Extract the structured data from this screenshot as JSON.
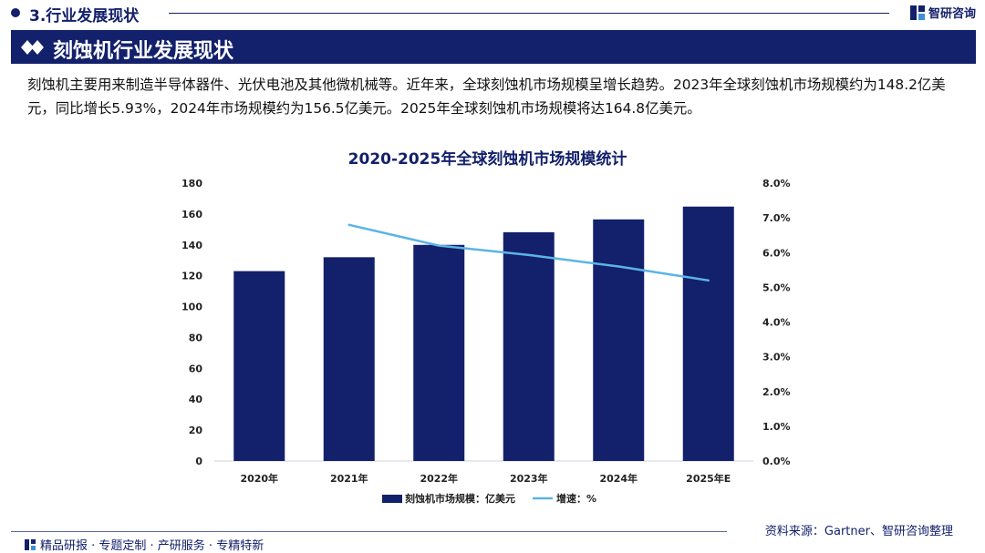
{
  "header": {
    "section_title": "3.行业发展现状",
    "logo_text": "智研咨询"
  },
  "banner": {
    "title": "刻蚀机行业发展现状"
  },
  "description": "刻蚀机主要用来制造半导体器件、光伏电池及其他微机械等。近年来，全球刻蚀机市场规模呈增长趋势。2023年全球刻蚀机市场规模约为148.2亿美元，同比增长5.93%，2024年市场规模约为156.5亿美元。2025年全球刻蚀机市场规模将达164.8亿美元。",
  "chart_data": {
    "type": "bar",
    "title": "2020-2025年全球刻蚀机市场规模统计",
    "categories": [
      "2020年",
      "2021年",
      "2022年",
      "2023年",
      "2024年",
      "2025年E"
    ],
    "series": [
      {
        "name": "刻蚀机市场规模：亿美元",
        "type": "bar",
        "axis": "left",
        "color": "#13206b",
        "values": [
          123,
          132,
          140,
          148.2,
          156.5,
          164.8
        ]
      },
      {
        "name": "增速：%",
        "type": "line",
        "axis": "right",
        "color": "#5ab4e5",
        "values": [
          null,
          6.8,
          6.2,
          5.93,
          5.6,
          5.2
        ]
      }
    ],
    "ylim_left": [
      0,
      180
    ],
    "yticks_left": [
      "0",
      "20",
      "40",
      "60",
      "80",
      "100",
      "120",
      "140",
      "160",
      "180"
    ],
    "ylim_right": [
      0,
      8
    ],
    "yticks_right": [
      "0.0%",
      "1.0%",
      "2.0%",
      "3.0%",
      "4.0%",
      "5.0%",
      "6.0%",
      "7.0%",
      "8.0%"
    ],
    "legend_position": "bottom"
  },
  "footer": {
    "left_text": "精品研报 · 专题定制 · 产研服务 · 专精特新",
    "source": "资料来源：Gartner、智研咨询整理"
  },
  "colors": {
    "primary": "#13206b",
    "line": "#5ab4e5"
  }
}
